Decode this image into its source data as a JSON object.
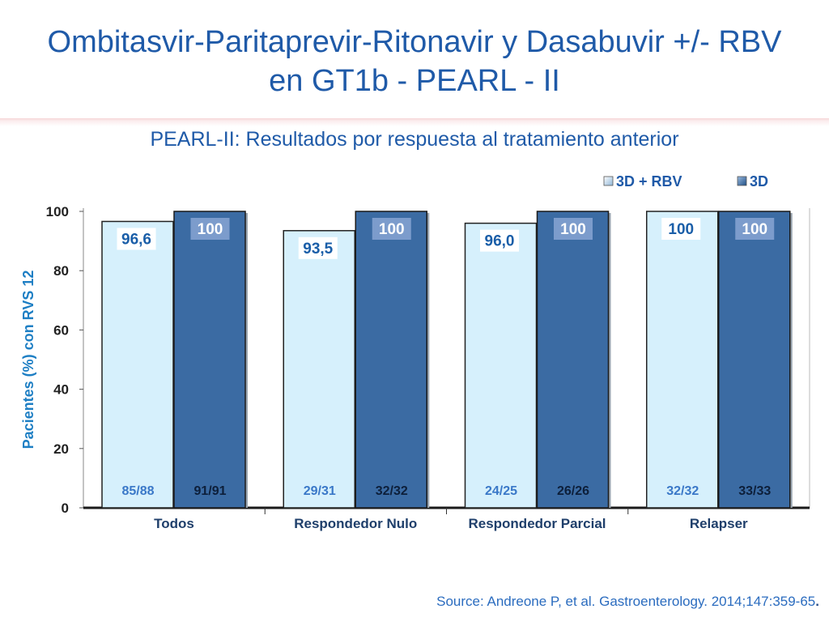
{
  "slide": {
    "title_line1": "Ombitasvir-Paritaprevir-Ritonavir y Dasabuvir +/- RBV",
    "title_line2": "en GT1b - PEARL - II",
    "subtitle": "PEARL-II: Resultados por respuesta al tratamiento anterior",
    "source": "Source: Andreone P, et al. Gastroenterology.  2014;147:359-65",
    "source_end": "."
  },
  "colors": {
    "series_light": "#d6f0fc",
    "series_dark": "#3b6ba3",
    "value_box_light": "#ffffff",
    "value_box_dark": "#7c9ccc",
    "value_text_light": "#1a5ea8",
    "value_text_dark": "#ffffff",
    "n_text_light": "#3a78c8",
    "n_text_dark": "#0d1f3a"
  },
  "chart_data": {
    "type": "bar",
    "title": "PEARL-II: Resultados por respuesta al tratamiento anterior",
    "ylabel": "Pacientes (%) con RVS  12",
    "xlabel": "",
    "ylim": [
      0,
      100
    ],
    "yticks": [
      0,
      20,
      40,
      60,
      80,
      100
    ],
    "grid": false,
    "legend_position": "top-right",
    "categories": [
      "Todos",
      "Respondedor Nulo",
      "Respondedor Parcial",
      "Relapser"
    ],
    "series": [
      {
        "name": "3D + RBV",
        "values": [
          96.6,
          93.5,
          96.0,
          100
        ],
        "value_labels": [
          "96,6",
          "93,5",
          "96,0",
          "100"
        ],
        "n_labels": [
          "85/88",
          "29/31",
          "24/25",
          "32/32"
        ]
      },
      {
        "name": "3D",
        "values": [
          100,
          100,
          100,
          100
        ],
        "value_labels": [
          "100",
          "100",
          "100",
          "100"
        ],
        "n_labels": [
          "91/91",
          "32/32",
          "26/26",
          "33/33"
        ]
      }
    ]
  }
}
